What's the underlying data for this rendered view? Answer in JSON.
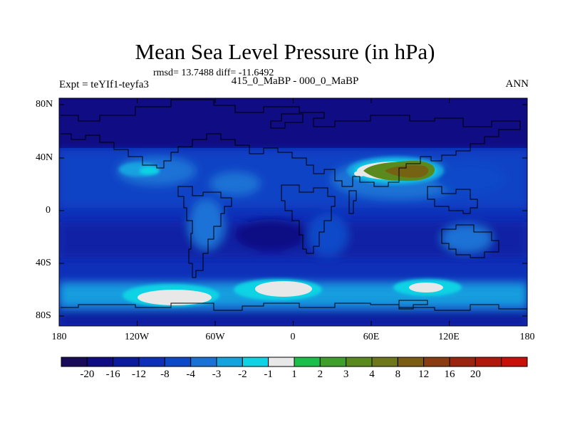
{
  "title": "Mean Sea Level Pressure (in hPa)",
  "stats": "rmsd= 13.7488  diff= -11.6492",
  "subtitle": "415_0_MaBP - 000_0_MaBP",
  "experiment": "Expt = teYIf1-teyfa3",
  "season": "ANN",
  "map": {
    "projection": "cylindrical equidistant",
    "lat_labels": [
      "80N",
      "40N",
      "0",
      "40S",
      "80S"
    ],
    "lon_labels": [
      "180",
      "120W",
      "60W",
      "0",
      "60E",
      "120E",
      "180"
    ]
  },
  "colorbar": {
    "colors": [
      "#1a0a5a",
      "#100c84",
      "#0c1a9e",
      "#0e2fb8",
      "#0b49c8",
      "#1a72d6",
      "#15a3e0",
      "#0fd3e4",
      "#e8e8e8",
      "#1cbf4a",
      "#3ea02a",
      "#5a8a1e",
      "#6e781a",
      "#7a5c12",
      "#8a3c10",
      "#9a2410",
      "#b0180c",
      "#c81008"
    ],
    "labels": [
      "-20",
      "-16",
      "-12",
      "-8",
      "-4",
      "-3",
      "-2",
      "-1",
      "1",
      "2",
      "3",
      "4",
      "8",
      "12",
      "16",
      "20"
    ]
  }
}
